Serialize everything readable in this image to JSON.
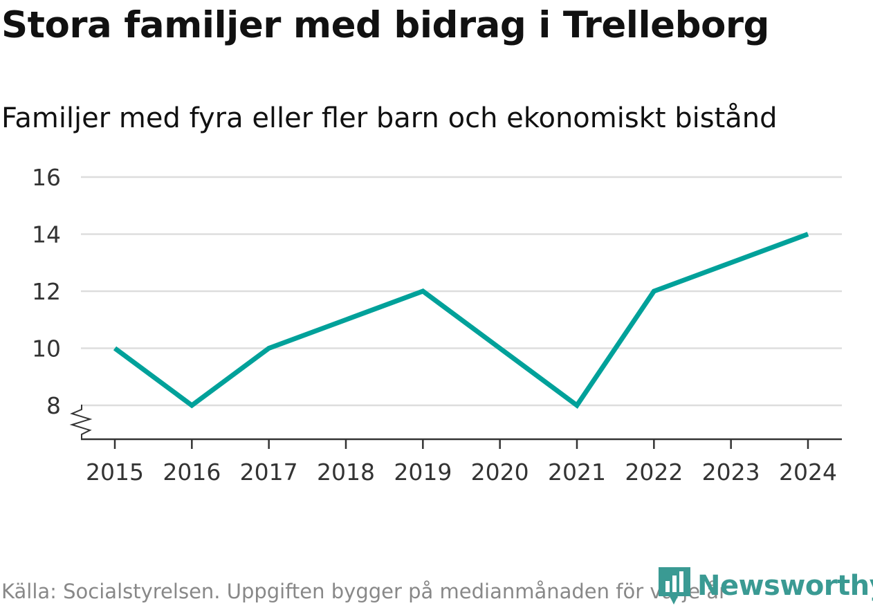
{
  "header": {
    "title": "Stora familjer med bidrag i Trelleborg",
    "subtitle": "Familjer med fyra eller fler barn och ekonomiskt bistånd"
  },
  "chart_data": {
    "type": "line",
    "title": "Stora familjer med bidrag i Trelleborg",
    "subtitle": "Familjer med fyra eller fler barn och ekonomiskt bistånd",
    "xlabel": "",
    "ylabel": "",
    "categories": [
      "2015",
      "2016",
      "2017",
      "2018",
      "2019",
      "2020",
      "2021",
      "2022",
      "2023",
      "2024"
    ],
    "series": [
      {
        "name": "Familjer med fyra eller fler barn och ekonomiskt bistånd",
        "values": [
          10,
          8,
          10,
          11,
          12,
          10,
          8,
          12,
          13,
          14
        ]
      }
    ],
    "yticks": [
      8,
      10,
      12,
      14,
      16
    ],
    "ylim": [
      8,
      16
    ],
    "y_axis_break": true,
    "grid": true,
    "line_color": "#00a19a"
  },
  "footer": {
    "source": "Källa: Socialstyrelsen. Uppgiften bygger på medianmånaden för varje år"
  },
  "brand": {
    "name": "Newsworthy",
    "logo_icon": "newsworthy-logo-icon",
    "color": "#3a9a93"
  }
}
